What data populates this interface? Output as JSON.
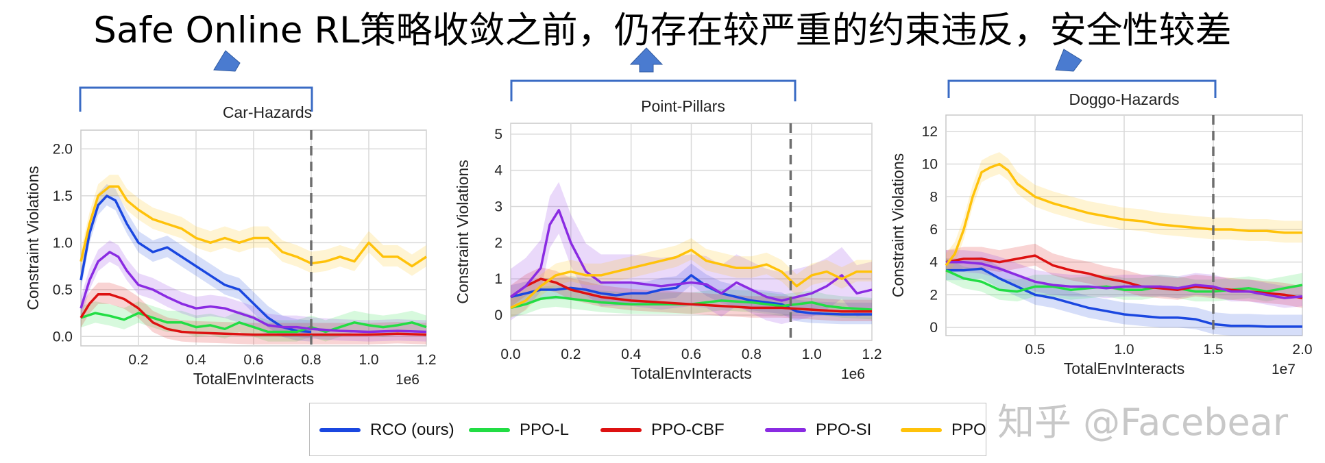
{
  "page": {
    "title": "Safe Online RL策略收敛之前，仍存在较严重的约束违反，安全性较差",
    "watermark": "知乎 @Facebear"
  },
  "colors": {
    "RCO (ours)": "#1a47e0",
    "PPO-L": "#22dd44",
    "PPO-CBF": "#dd1111",
    "PPO-SI": "#8a2be2",
    "PPO": "#ffc20a",
    "bracket": "#3a6bc4",
    "arrow": "#3a6bc4"
  },
  "legend": {
    "items": [
      {
        "label": "RCO (ours)",
        "color": "#1a47e0"
      },
      {
        "label": "PPO-L",
        "color": "#22dd44"
      },
      {
        "label": "PPO-CBF",
        "color": "#dd1111"
      },
      {
        "label": "PPO-SI",
        "color": "#8a2be2"
      },
      {
        "label": "PPO",
        "color": "#ffc20a"
      }
    ]
  },
  "chart_data": [
    {
      "type": "line",
      "title": "Car-Hazards",
      "xlabel": "TotalEnvInteracts",
      "ylabel": "Constraint Violations",
      "x_multiplier": "1e6",
      "xlim": [
        0.0,
        1.2
      ],
      "ylim": [
        -0.1,
        2.2
      ],
      "xticks": [
        0.2,
        0.4,
        0.6,
        0.8,
        1.0,
        1.2
      ],
      "xtick_labels": [
        "0.2",
        "0.4",
        "0.6",
        "0.8",
        "1.0",
        "1.2"
      ],
      "yticks": [
        0.0,
        0.5,
        1.0,
        1.5,
        2.0
      ],
      "ytick_labels": [
        "0.0",
        "0.5",
        "1.0",
        "1.5",
        "2.0"
      ],
      "vline": 0.8,
      "grid": true,
      "series": [
        {
          "name": "RCO (ours)",
          "x": [
            0.0,
            0.03,
            0.06,
            0.09,
            0.12,
            0.16,
            0.2,
            0.25,
            0.3,
            0.35,
            0.4,
            0.45,
            0.5,
            0.55,
            0.6,
            0.65,
            0.7,
            0.75,
            0.8
          ],
          "y": [
            0.6,
            1.1,
            1.4,
            1.5,
            1.45,
            1.2,
            1.0,
            0.9,
            0.95,
            0.85,
            0.75,
            0.65,
            0.55,
            0.5,
            0.35,
            0.2,
            0.1,
            0.06,
            0.05
          ]
        },
        {
          "name": "PPO-L",
          "x": [
            0.0,
            0.05,
            0.1,
            0.15,
            0.2,
            0.25,
            0.3,
            0.35,
            0.4,
            0.45,
            0.5,
            0.55,
            0.6,
            0.65,
            0.7,
            0.75,
            0.8,
            0.85,
            0.9,
            0.95,
            1.0,
            1.05,
            1.1,
            1.15,
            1.2
          ],
          "y": [
            0.2,
            0.25,
            0.22,
            0.18,
            0.25,
            0.2,
            0.15,
            0.15,
            0.1,
            0.12,
            0.08,
            0.15,
            0.1,
            0.05,
            0.05,
            0.05,
            0.1,
            0.05,
            0.1,
            0.15,
            0.12,
            0.1,
            0.12,
            0.15,
            0.1
          ]
        },
        {
          "name": "PPO-CBF",
          "x": [
            0.0,
            0.03,
            0.06,
            0.1,
            0.15,
            0.2,
            0.25,
            0.3,
            0.35,
            0.4,
            0.5,
            0.6,
            0.7,
            0.8,
            0.9,
            1.0,
            1.1,
            1.2
          ],
          "y": [
            0.2,
            0.35,
            0.45,
            0.45,
            0.4,
            0.3,
            0.15,
            0.08,
            0.05,
            0.04,
            0.03,
            0.02,
            0.02,
            0.02,
            0.02,
            0.02,
            0.03,
            0.02
          ]
        },
        {
          "name": "PPO-SI",
          "x": [
            0.0,
            0.03,
            0.06,
            0.1,
            0.13,
            0.16,
            0.2,
            0.25,
            0.3,
            0.35,
            0.4,
            0.45,
            0.5,
            0.55,
            0.6,
            0.65,
            0.7,
            0.75,
            0.8,
            0.9,
            1.0,
            1.1,
            1.2
          ],
          "y": [
            0.3,
            0.6,
            0.8,
            0.9,
            0.85,
            0.7,
            0.55,
            0.5,
            0.42,
            0.35,
            0.3,
            0.32,
            0.3,
            0.25,
            0.2,
            0.12,
            0.1,
            0.1,
            0.08,
            0.06,
            0.05,
            0.06,
            0.05
          ]
        },
        {
          "name": "PPO",
          "x": [
            0.0,
            0.03,
            0.06,
            0.1,
            0.13,
            0.16,
            0.2,
            0.25,
            0.3,
            0.35,
            0.4,
            0.45,
            0.5,
            0.55,
            0.6,
            0.65,
            0.7,
            0.75,
            0.8,
            0.85,
            0.9,
            0.95,
            1.0,
            1.05,
            1.1,
            1.15,
            1.2
          ],
          "y": [
            0.8,
            1.2,
            1.5,
            1.6,
            1.6,
            1.45,
            1.35,
            1.25,
            1.2,
            1.15,
            1.05,
            1.0,
            1.05,
            1.0,
            1.05,
            1.05,
            0.9,
            0.85,
            0.78,
            0.8,
            0.85,
            0.8,
            1.0,
            0.85,
            0.85,
            0.75,
            0.85
          ]
        }
      ]
    },
    {
      "type": "line",
      "title": "Point-Pillars",
      "xlabel": "TotalEnvInteracts",
      "ylabel": "Constraint Violations",
      "x_multiplier": "1e6",
      "xlim": [
        0.0,
        1.2
      ],
      "ylim": [
        -0.7,
        5.3
      ],
      "xticks": [
        0.0,
        0.2,
        0.4,
        0.6,
        0.8,
        1.0,
        1.2
      ],
      "xtick_labels": [
        "0.0",
        "0.2",
        "0.4",
        "0.6",
        "0.8",
        "1.0",
        "1.2"
      ],
      "yticks": [
        0,
        1,
        2,
        3,
        4,
        5
      ],
      "ytick_labels": [
        "0",
        "1",
        "2",
        "3",
        "4",
        "5"
      ],
      "vline": 0.93,
      "grid": true,
      "series": [
        {
          "name": "RCO (ours)",
          "x": [
            0.0,
            0.05,
            0.1,
            0.15,
            0.2,
            0.25,
            0.3,
            0.35,
            0.4,
            0.45,
            0.5,
            0.55,
            0.6,
            0.65,
            0.7,
            0.75,
            0.8,
            0.85,
            0.9,
            0.95,
            1.0,
            1.1,
            1.2
          ],
          "y": [
            0.5,
            0.6,
            0.7,
            0.7,
            0.75,
            0.7,
            0.6,
            0.55,
            0.6,
            0.6,
            0.7,
            0.75,
            1.1,
            0.8,
            0.6,
            0.5,
            0.4,
            0.35,
            0.3,
            0.1,
            0.05,
            0.02,
            0.02
          ]
        },
        {
          "name": "PPO-L",
          "x": [
            0.0,
            0.05,
            0.1,
            0.15,
            0.2,
            0.3,
            0.4,
            0.5,
            0.6,
            0.7,
            0.8,
            0.9,
            0.95,
            1.0,
            1.05,
            1.1,
            1.2
          ],
          "y": [
            0.2,
            0.3,
            0.45,
            0.5,
            0.45,
            0.35,
            0.3,
            0.3,
            0.3,
            0.4,
            0.35,
            0.25,
            0.3,
            0.35,
            0.25,
            0.2,
            0.15
          ]
        },
        {
          "name": "PPO-CBF",
          "x": [
            0.0,
            0.05,
            0.1,
            0.15,
            0.2,
            0.3,
            0.4,
            0.5,
            0.6,
            0.7,
            0.8,
            0.9,
            1.0,
            1.1,
            1.2
          ],
          "y": [
            0.5,
            0.8,
            1.0,
            0.9,
            0.7,
            0.5,
            0.4,
            0.35,
            0.3,
            0.25,
            0.2,
            0.2,
            0.15,
            0.1,
            0.1
          ]
        },
        {
          "name": "PPO-SI",
          "x": [
            0.0,
            0.05,
            0.1,
            0.13,
            0.16,
            0.2,
            0.25,
            0.3,
            0.4,
            0.5,
            0.6,
            0.65,
            0.7,
            0.75,
            0.8,
            0.85,
            0.9,
            0.95,
            1.0,
            1.05,
            1.1,
            1.15,
            1.2
          ],
          "y": [
            0.5,
            0.8,
            1.3,
            2.5,
            2.9,
            2.0,
            1.2,
            0.9,
            0.9,
            0.8,
            0.9,
            0.85,
            0.6,
            0.9,
            0.7,
            0.5,
            0.4,
            0.5,
            0.6,
            0.8,
            1.1,
            0.6,
            0.7
          ]
        },
        {
          "name": "PPO",
          "x": [
            0.0,
            0.05,
            0.1,
            0.15,
            0.2,
            0.25,
            0.3,
            0.35,
            0.4,
            0.45,
            0.5,
            0.55,
            0.6,
            0.65,
            0.7,
            0.75,
            0.8,
            0.85,
            0.9,
            0.95,
            1.0,
            1.05,
            1.1,
            1.15,
            1.2
          ],
          "y": [
            0.2,
            0.4,
            0.8,
            1.1,
            1.2,
            1.1,
            1.1,
            1.2,
            1.3,
            1.4,
            1.5,
            1.6,
            1.8,
            1.5,
            1.4,
            1.3,
            1.3,
            1.4,
            1.2,
            0.8,
            1.1,
            1.2,
            1.0,
            1.2,
            1.2
          ]
        }
      ]
    },
    {
      "type": "line",
      "title": "Doggo-Hazards",
      "xlabel": "TotalEnvInteracts",
      "ylabel": "Constraint Violations",
      "x_multiplier": "1e7",
      "xlim": [
        0.0,
        2.0
      ],
      "ylim": [
        -0.5,
        13.0
      ],
      "xticks": [
        0.5,
        1.0,
        1.5,
        2.0
      ],
      "xtick_labels": [
        "0.5",
        "1.0",
        "1.5",
        "2.0"
      ],
      "yticks": [
        0,
        2,
        4,
        6,
        8,
        10,
        12
      ],
      "ytick_labels": [
        "0",
        "2",
        "4",
        "6",
        "8",
        "10",
        "12"
      ],
      "vline": 1.5,
      "grid": true,
      "series": [
        {
          "name": "RCO (ours)",
          "x": [
            0.0,
            0.1,
            0.2,
            0.3,
            0.4,
            0.5,
            0.6,
            0.7,
            0.8,
            0.9,
            1.0,
            1.1,
            1.2,
            1.3,
            1.4,
            1.5,
            1.6,
            1.7,
            1.8,
            1.9,
            2.0
          ],
          "y": [
            3.5,
            3.5,
            3.6,
            3.0,
            2.5,
            2.0,
            1.8,
            1.5,
            1.2,
            1.0,
            0.8,
            0.7,
            0.6,
            0.6,
            0.5,
            0.2,
            0.1,
            0.1,
            0.05,
            0.05,
            0.05
          ]
        },
        {
          "name": "PPO-L",
          "x": [
            0.0,
            0.1,
            0.2,
            0.3,
            0.4,
            0.5,
            0.6,
            0.7,
            0.8,
            0.9,
            1.0,
            1.1,
            1.2,
            1.3,
            1.4,
            1.5,
            1.6,
            1.7,
            1.8,
            1.9,
            2.0
          ],
          "y": [
            3.5,
            3.0,
            2.8,
            2.3,
            2.2,
            2.5,
            2.5,
            2.3,
            2.4,
            2.5,
            2.3,
            2.3,
            2.5,
            2.4,
            2.2,
            2.2,
            2.3,
            2.4,
            2.2,
            2.4,
            2.6
          ]
        },
        {
          "name": "PPO-CBF",
          "x": [
            0.0,
            0.1,
            0.2,
            0.3,
            0.4,
            0.5,
            0.6,
            0.7,
            0.8,
            0.9,
            1.0,
            1.1,
            1.2,
            1.3,
            1.4,
            1.5,
            1.6,
            1.7,
            1.8,
            1.9,
            2.0
          ],
          "y": [
            4.0,
            4.2,
            4.2,
            4.0,
            4.2,
            4.4,
            3.8,
            3.5,
            3.3,
            3.0,
            2.8,
            2.5,
            2.4,
            2.3,
            2.5,
            2.4,
            2.3,
            2.2,
            2.1,
            2.0,
            1.8
          ]
        },
        {
          "name": "PPO-SI",
          "x": [
            0.0,
            0.1,
            0.2,
            0.3,
            0.4,
            0.5,
            0.6,
            0.7,
            0.8,
            0.9,
            1.0,
            1.1,
            1.2,
            1.3,
            1.4,
            1.5,
            1.6,
            1.7,
            1.8,
            1.9,
            2.0
          ],
          "y": [
            4.0,
            4.0,
            3.9,
            3.6,
            3.2,
            2.8,
            2.6,
            2.5,
            2.5,
            2.4,
            2.5,
            2.5,
            2.5,
            2.4,
            2.6,
            2.5,
            2.2,
            2.2,
            2.0,
            1.8,
            1.9
          ]
        },
        {
          "name": "PPO",
          "x": [
            0.0,
            0.05,
            0.1,
            0.15,
            0.2,
            0.25,
            0.3,
            0.35,
            0.4,
            0.5,
            0.6,
            0.7,
            0.8,
            0.9,
            1.0,
            1.1,
            1.2,
            1.3,
            1.4,
            1.5,
            1.6,
            1.7,
            1.8,
            1.9,
            2.0
          ],
          "y": [
            3.8,
            4.5,
            6.0,
            8.0,
            9.5,
            9.8,
            10.0,
            9.6,
            8.8,
            8.0,
            7.6,
            7.3,
            7.0,
            6.8,
            6.6,
            6.5,
            6.3,
            6.2,
            6.1,
            6.0,
            6.0,
            5.9,
            5.9,
            5.8,
            5.8
          ]
        }
      ]
    }
  ]
}
